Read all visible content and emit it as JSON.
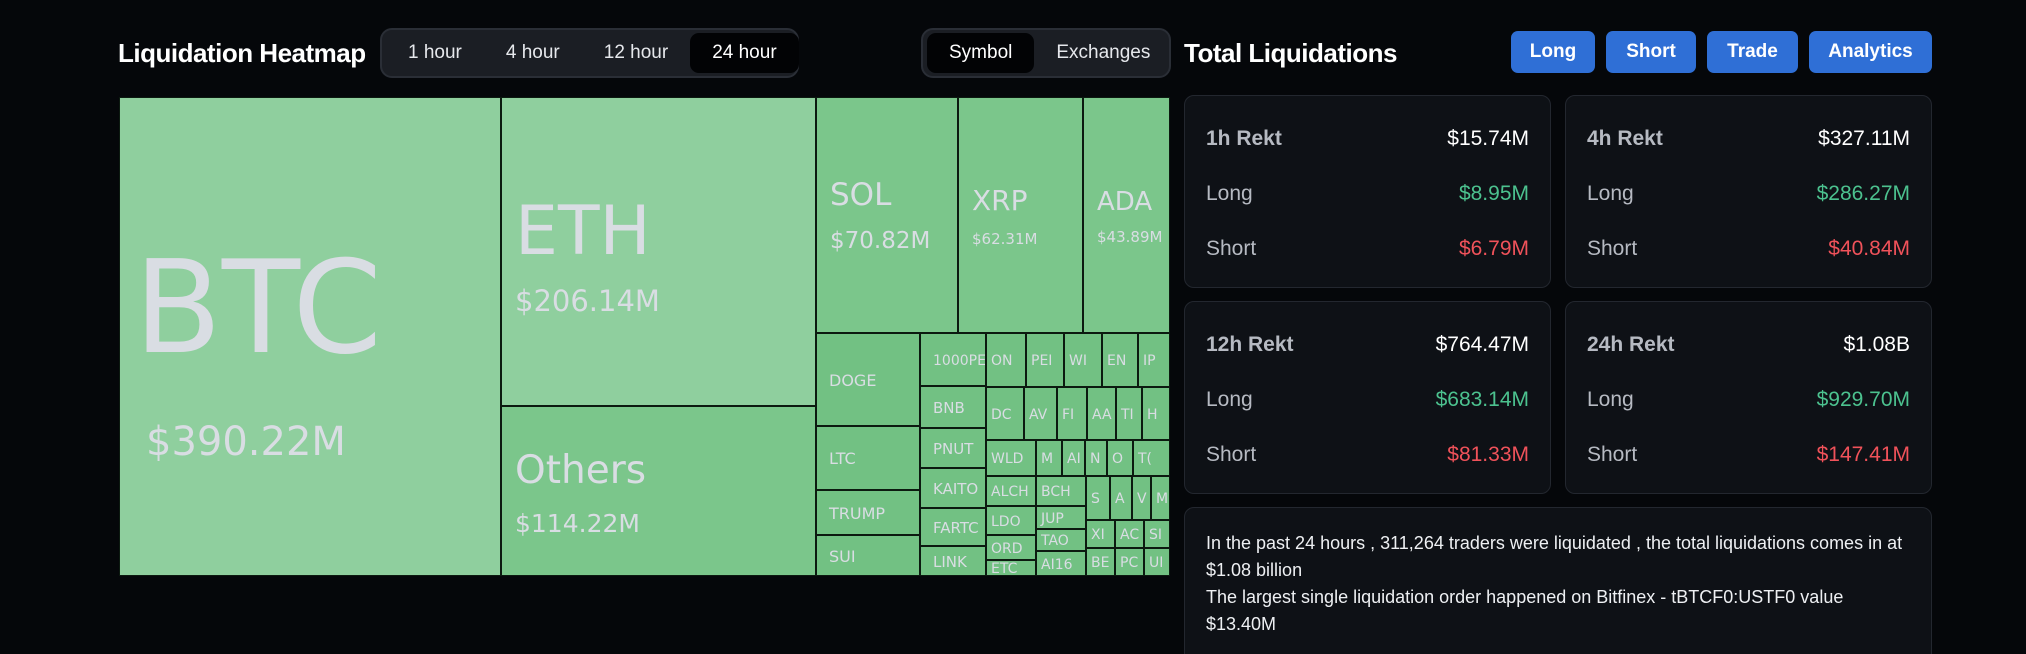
{
  "heatmap": {
    "title": "Liquidation Heatmap",
    "time_tabs": [
      "1 hour",
      "4 hour",
      "12 hour",
      "24 hour"
    ],
    "active_time_tab": "24 hour",
    "view_tabs": [
      "Symbol",
      "Exchanges"
    ],
    "active_view_tab": "Symbol",
    "tiles": [
      {
        "sym": "BTC",
        "val": "$390.22M"
      },
      {
        "sym": "ETH",
        "val": "$206.14M"
      },
      {
        "sym": "Others",
        "val": "$114.22M"
      },
      {
        "sym": "SOL",
        "val": "$70.82M"
      },
      {
        "sym": "XRP",
        "val": "$62.31M"
      },
      {
        "sym": "ADA",
        "val": "$43.89M"
      },
      {
        "sym": "DOGE"
      },
      {
        "sym": "LTC"
      },
      {
        "sym": "TRUMP"
      },
      {
        "sym": "SUI"
      },
      {
        "sym": "1000PE"
      },
      {
        "sym": "BNB"
      },
      {
        "sym": "PNUT"
      },
      {
        "sym": "KAITO"
      },
      {
        "sym": "FARTC"
      },
      {
        "sym": "LINK"
      },
      {
        "sym": "ON"
      },
      {
        "sym": "PEI"
      },
      {
        "sym": "WI"
      },
      {
        "sym": "EN"
      },
      {
        "sym": "IP"
      },
      {
        "sym": "DC"
      },
      {
        "sym": "AV"
      },
      {
        "sym": "FI"
      },
      {
        "sym": "AA"
      },
      {
        "sym": "TI"
      },
      {
        "sym": "H"
      },
      {
        "sym": "WLD"
      },
      {
        "sym": "M"
      },
      {
        "sym": "AI"
      },
      {
        "sym": "N"
      },
      {
        "sym": "O"
      },
      {
        "sym": "T("
      },
      {
        "sym": "ALCH"
      },
      {
        "sym": "BCH"
      },
      {
        "sym": "S"
      },
      {
        "sym": "A"
      },
      {
        "sym": "V"
      },
      {
        "sym": "M"
      },
      {
        "sym": "LDO"
      },
      {
        "sym": "JUP"
      },
      {
        "sym": "ORD"
      },
      {
        "sym": "TAO"
      },
      {
        "sym": "XI"
      },
      {
        "sym": "AC"
      },
      {
        "sym": "SI"
      },
      {
        "sym": "ETC"
      },
      {
        "sym": "AI16"
      },
      {
        "sym": "BE"
      },
      {
        "sym": "PC"
      },
      {
        "sym": "UI"
      }
    ]
  },
  "totals": {
    "title": "Total Liquidations",
    "buttons": [
      "Long",
      "Short",
      "Trade",
      "Analytics"
    ],
    "cards": [
      {
        "label": "1h Rekt",
        "total": "$15.74M",
        "long_label": "Long",
        "long": "$8.95M",
        "short_label": "Short",
        "short": "$6.79M"
      },
      {
        "label": "4h Rekt",
        "total": "$327.11M",
        "long_label": "Long",
        "long": "$286.27M",
        "short_label": "Short",
        "short": "$40.84M"
      },
      {
        "label": "12h Rekt",
        "total": "$764.47M",
        "long_label": "Long",
        "long": "$683.14M",
        "short_label": "Short",
        "short": "$81.33M"
      },
      {
        "label": "24h Rekt",
        "total": "$1.08B",
        "long_label": "Long",
        "long": "$929.70M",
        "short_label": "Short",
        "short": "$147.41M"
      }
    ],
    "summary_line1": "In the past 24 hours , 311,264 traders were liquidated , the total liquidations comes in at $1.08 billion",
    "summary_line2": "The largest single liquidation order happened on Bitfinex - tBTCF0:USTF0 value $13.40M"
  },
  "colors": {
    "tile_light": "#8fcf9e",
    "tile_mid": "#7bc68b",
    "tile_dark": "#72c183",
    "accent_blue": "#2f6fd6",
    "long_green": "#4cc28f",
    "short_red": "#f0525a"
  }
}
